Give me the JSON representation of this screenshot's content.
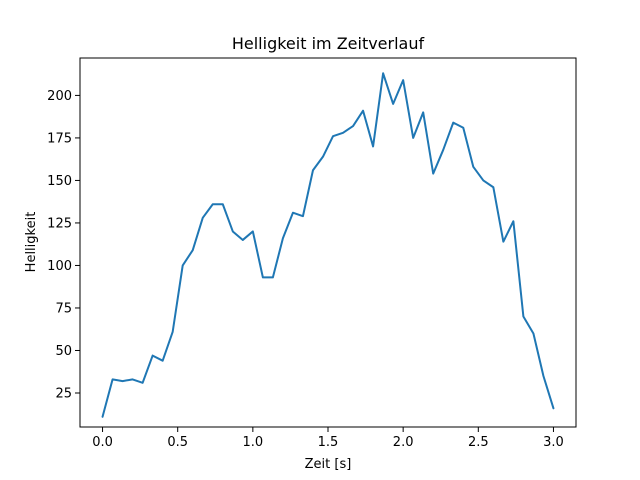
{
  "chart_data": {
    "type": "line",
    "title": "Helligkeit im Zeitverlauf",
    "xlabel": "Zeit [s]",
    "ylabel": "Helligkeit",
    "xlim": [
      -0.15,
      3.15
    ],
    "ylim": [
      5,
      222
    ],
    "xticks": [
      {
        "value": 0.0,
        "label": "0.0"
      },
      {
        "value": 0.5,
        "label": "0.5"
      },
      {
        "value": 1.0,
        "label": "1.0"
      },
      {
        "value": 1.5,
        "label": "1.5"
      },
      {
        "value": 2.0,
        "label": "2.0"
      },
      {
        "value": 2.5,
        "label": "2.5"
      },
      {
        "value": 3.0,
        "label": "3.0"
      }
    ],
    "yticks": [
      {
        "value": 25,
        "label": "25"
      },
      {
        "value": 50,
        "label": "50"
      },
      {
        "value": 75,
        "label": "75"
      },
      {
        "value": 100,
        "label": "100"
      },
      {
        "value": 125,
        "label": "125"
      },
      {
        "value": 150,
        "label": "150"
      },
      {
        "value": 175,
        "label": "175"
      },
      {
        "value": 200,
        "label": "200"
      }
    ],
    "grid": false,
    "legend": "none",
    "series": [
      {
        "color": "#1f77b4",
        "x": [
          0.0,
          0.0667,
          0.1333,
          0.2,
          0.2667,
          0.3333,
          0.4,
          0.4667,
          0.5333,
          0.6,
          0.6667,
          0.7333,
          0.8,
          0.8667,
          0.9333,
          1.0,
          1.0667,
          1.1333,
          1.2,
          1.2667,
          1.3333,
          1.4,
          1.4667,
          1.5333,
          1.6,
          1.6667,
          1.7333,
          1.8,
          1.8667,
          1.9333,
          2.0,
          2.0667,
          2.1333,
          2.2,
          2.2667,
          2.3333,
          2.4,
          2.4667,
          2.5333,
          2.6,
          2.6667,
          2.7333,
          2.8,
          2.8667,
          2.9333,
          3.0
        ],
        "y": [
          11,
          33,
          32,
          33,
          31,
          47,
          44,
          61,
          100,
          109,
          128,
          136,
          136,
          120,
          115,
          120,
          93,
          93,
          116,
          131,
          129,
          156,
          164,
          176,
          178,
          182,
          191,
          170,
          213,
          195,
          209,
          175,
          190,
          154,
          168,
          184,
          181,
          158,
          150,
          146,
          114,
          126,
          70,
          60,
          35,
          16
        ]
      }
    ]
  }
}
